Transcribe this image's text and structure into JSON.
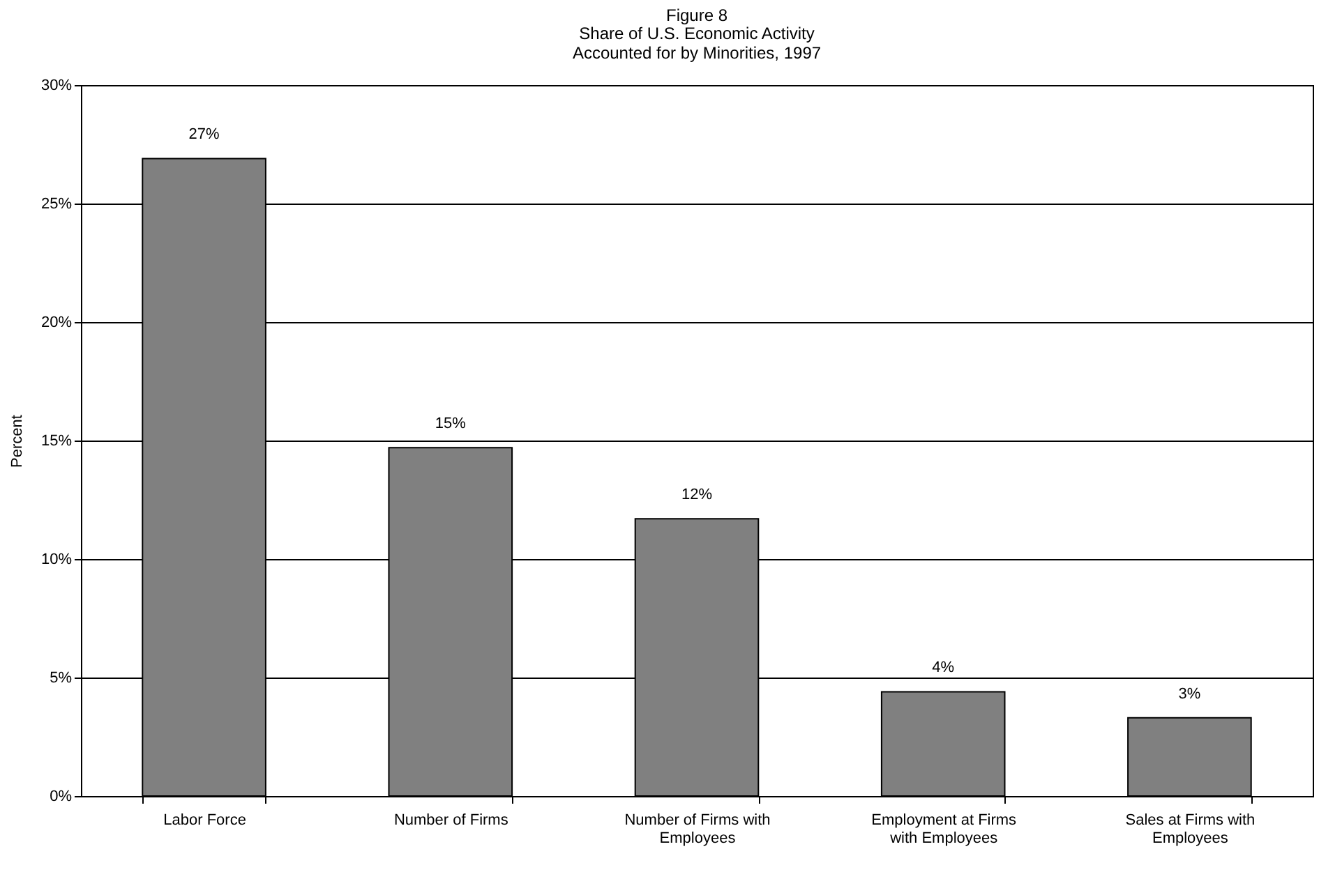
{
  "chart_data": {
    "type": "bar",
    "title": "Figure 8",
    "subtitle": "Share of U.S. Economic Activity Accounted for by Minorities, 1997",
    "ylabel": "Percent",
    "categories": [
      "Labor Force",
      "Number of Firms",
      "Number of Firms with Employees",
      "Employment at Firms with Employees",
      "Sales at Firms with Employees"
    ],
    "values": [
      26.9,
      14.7,
      11.7,
      4.4,
      3.3
    ],
    "value_labels": [
      "27%",
      "15%",
      "12%",
      "4%",
      "3%"
    ],
    "color": "#808080",
    "ylim": [
      0,
      30
    ],
    "yticks": [
      {
        "value": 0,
        "label": "0%"
      },
      {
        "value": 5,
        "label": "5%"
      },
      {
        "value": 10,
        "label": "10%"
      },
      {
        "value": 15,
        "label": "15%"
      },
      {
        "value": 20,
        "label": "20%"
      },
      {
        "value": 25,
        "label": "25%"
      },
      {
        "value": 30,
        "label": "30%"
      }
    ],
    "grid": "y"
  }
}
